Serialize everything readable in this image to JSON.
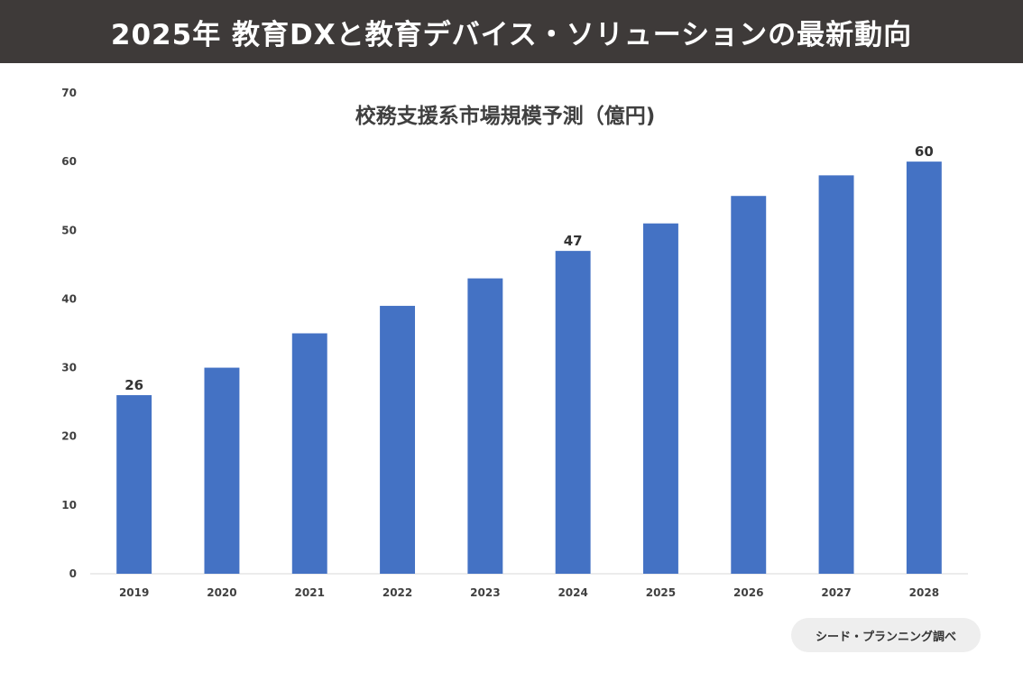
{
  "header": {
    "title": "2025年 教育DXと教育デバイス・ソリューションの最新動向"
  },
  "source": "シード・プランニング調べ",
  "colors": {
    "bar": "#4472c4",
    "banner": "#3e3a39"
  },
  "chart_data": {
    "type": "bar",
    "title": "校務支援系市場規模予測（億円)",
    "categories": [
      "2019",
      "2020",
      "2021",
      "2022",
      "2023",
      "2024",
      "2025",
      "2026",
      "2027",
      "2028"
    ],
    "values": [
      26,
      30,
      35,
      39,
      43,
      47,
      51,
      55,
      58,
      60
    ],
    "data_labels": [
      "26",
      "",
      "",
      "",
      "",
      "47",
      "",
      "",
      "",
      "60"
    ],
    "yticks": [
      "0",
      "10",
      "20",
      "30",
      "40",
      "50",
      "60",
      "70"
    ],
    "ylim": [
      0,
      70
    ],
    "xlabel": "",
    "ylabel": "",
    "grid": false,
    "legend": "none"
  }
}
